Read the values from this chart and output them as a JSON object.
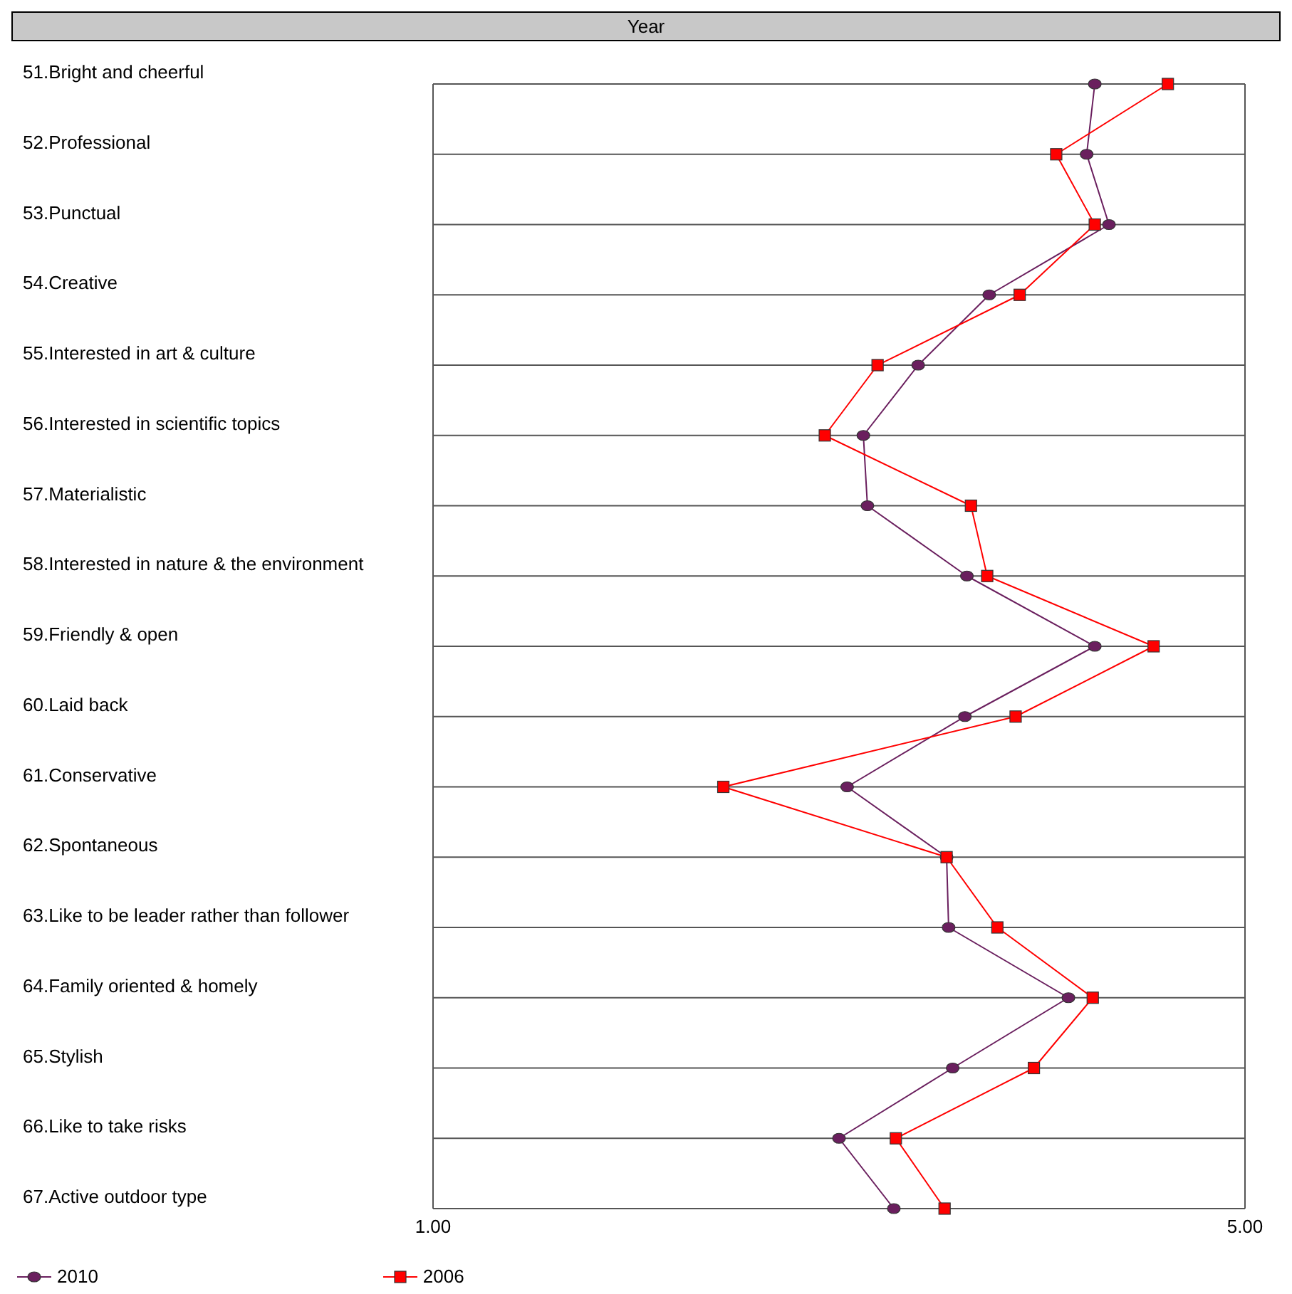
{
  "chart_data": {
    "type": "line",
    "title": "Year",
    "orientation": "horizontal",
    "categories": [
      "51.Bright and cheerful",
      "52.Professional",
      "53.Punctual",
      "54.Creative",
      "55.Interested in art & culture",
      "56.Interested in scientific topics",
      "57.Materialistic",
      "58.Interested in nature & the environment",
      "59.Friendly & open",
      "60.Laid back",
      "61.Conservative",
      "62.Spontaneous",
      "63.Like to be leader rather than follower",
      "64.Family oriented & homely",
      "65.Stylish",
      "66.Like to take risks",
      "67.Active outdoor type"
    ],
    "series": [
      {
        "name": "2010",
        "color": "#6a1f5e",
        "marker": "circle",
        "values": [
          4.26,
          4.22,
          4.33,
          3.74,
          3.39,
          3.12,
          3.14,
          3.63,
          4.26,
          3.62,
          3.04,
          3.53,
          3.54,
          4.13,
          3.56,
          3.0,
          3.27
        ]
      },
      {
        "name": "2006",
        "color": "#ff0000",
        "marker": "square",
        "values": [
          4.62,
          4.07,
          4.26,
          3.89,
          3.19,
          2.93,
          3.65,
          3.73,
          4.55,
          3.87,
          2.43,
          3.53,
          3.78,
          4.25,
          3.96,
          3.28,
          3.52
        ]
      }
    ],
    "xlim": [
      1,
      5
    ],
    "xticks": [
      {
        "value": 1,
        "label": "1.00"
      },
      {
        "value": 5,
        "label": "5.00"
      }
    ],
    "grid": true,
    "legend": "bottom",
    "line_style": "solid"
  }
}
